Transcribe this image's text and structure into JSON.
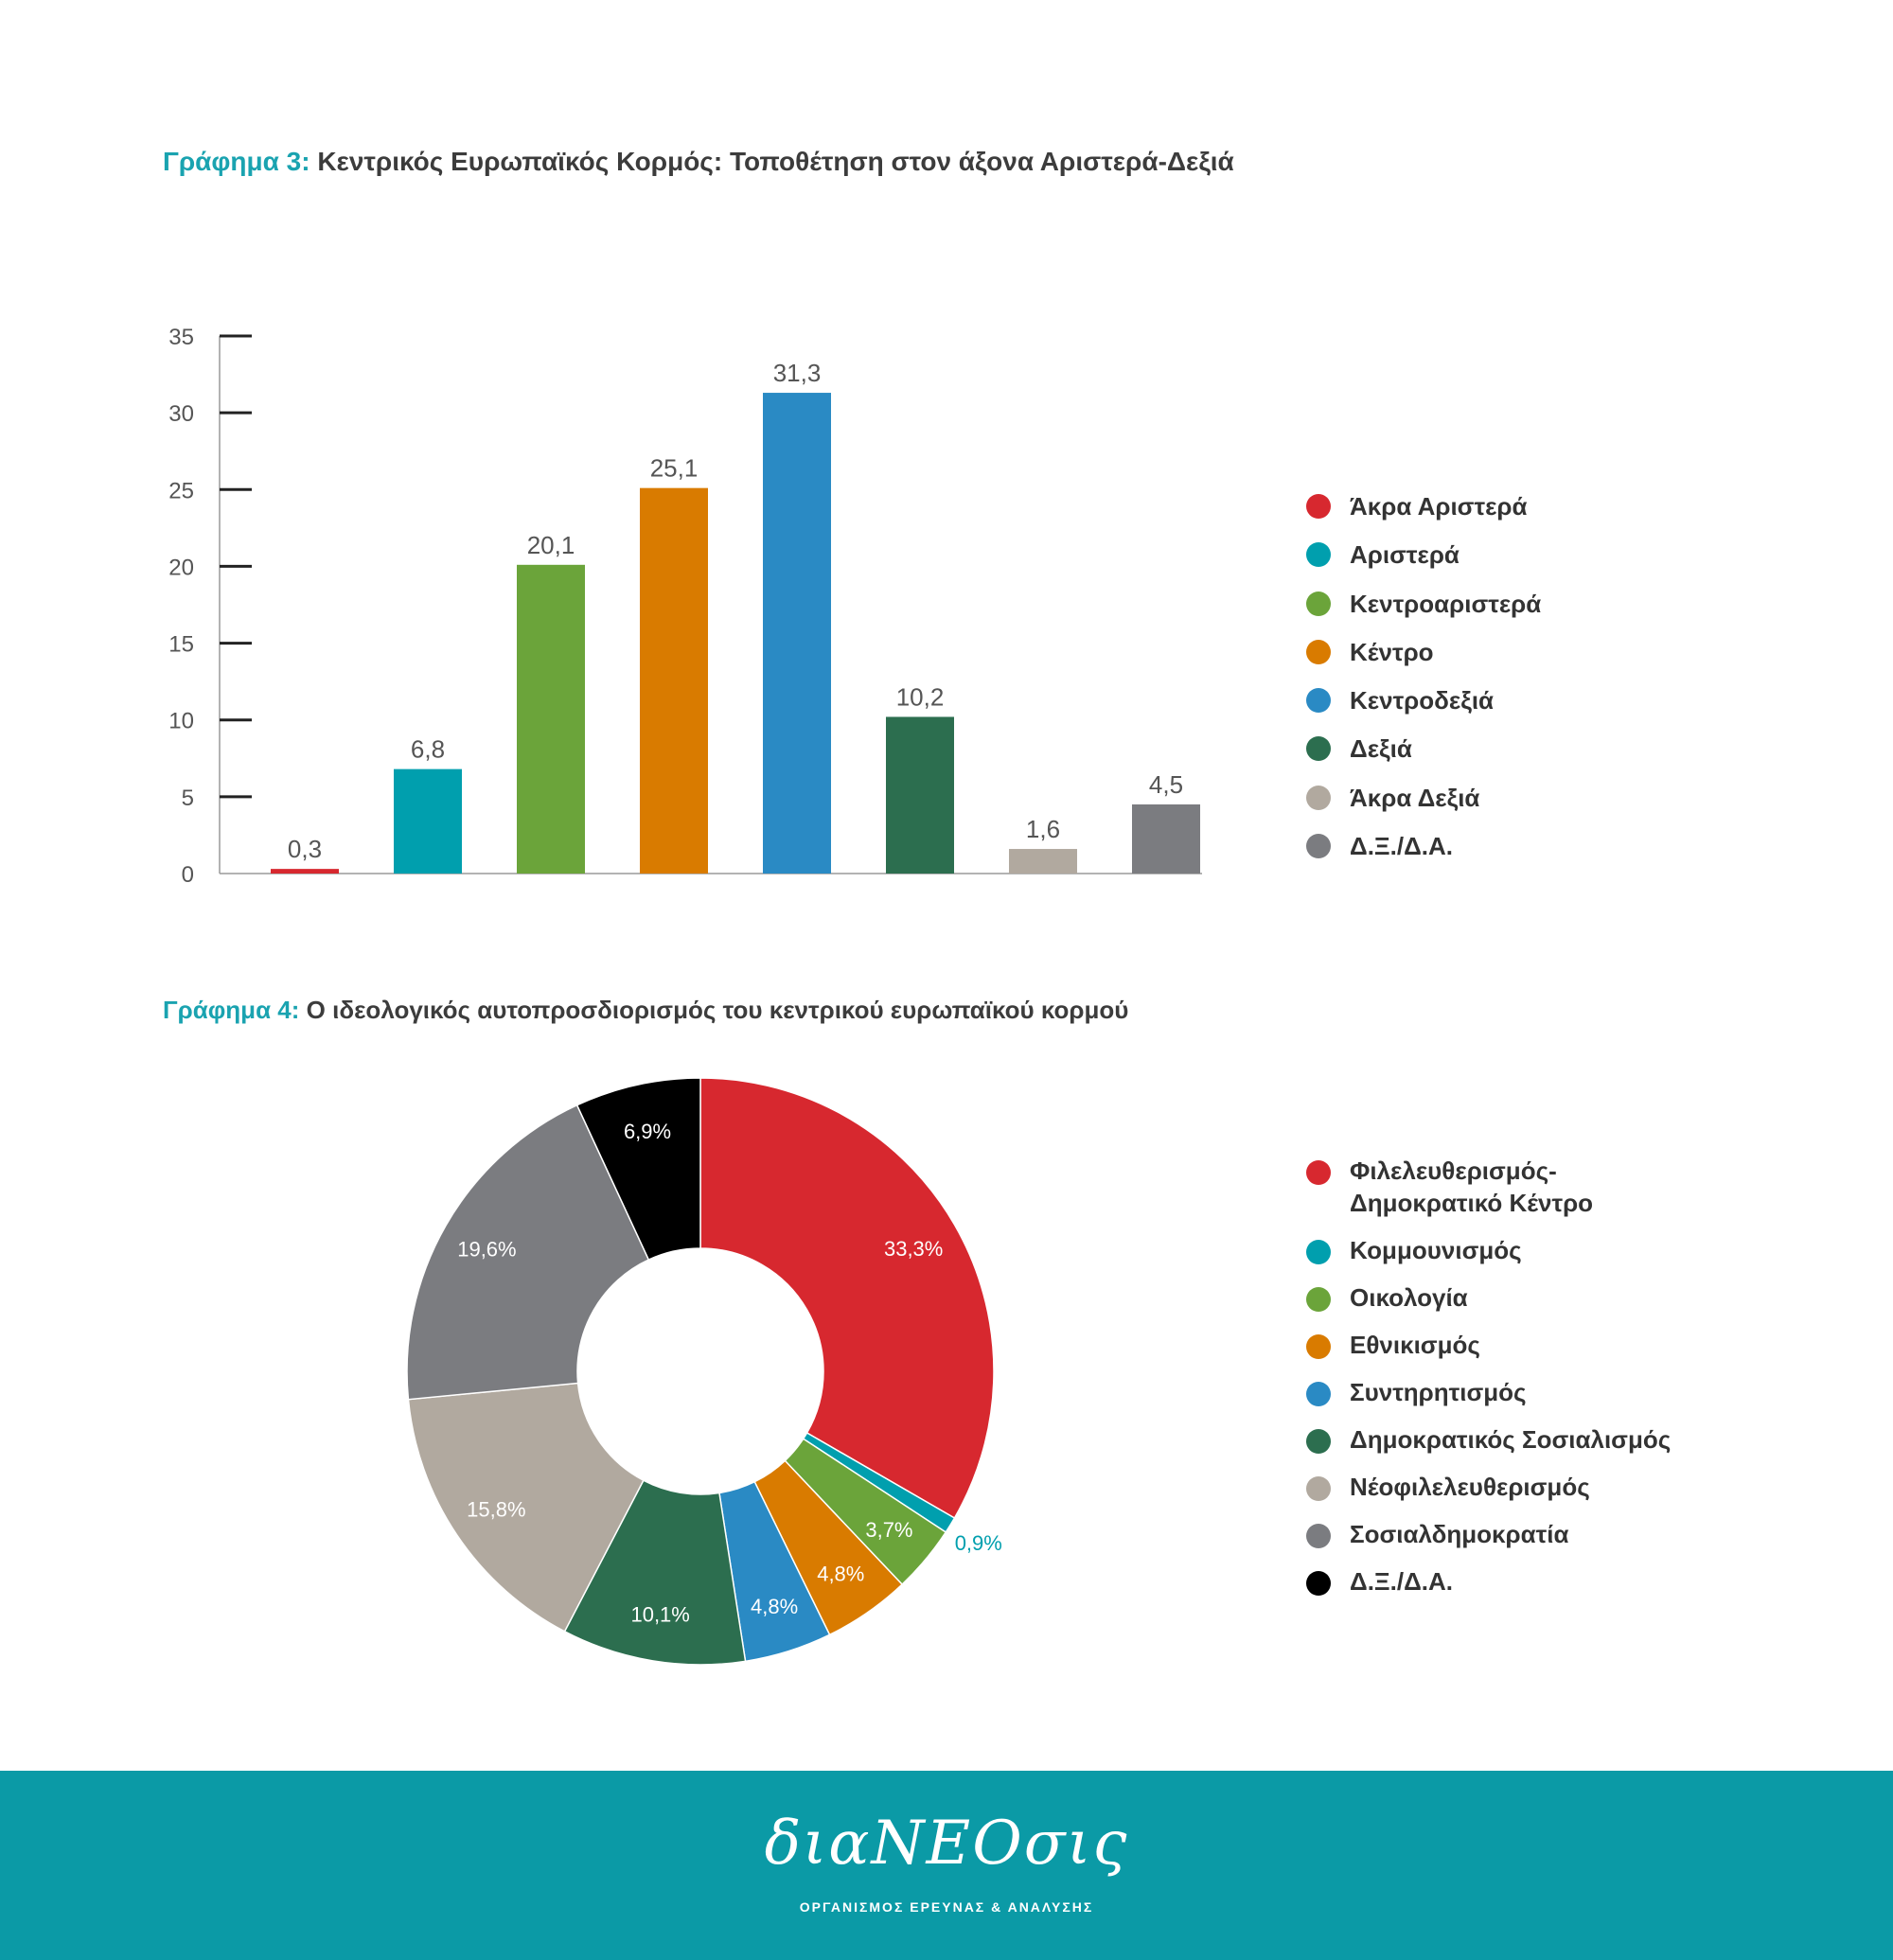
{
  "chart3": {
    "title_prefix": "Γράφημα 3:",
    "title": "Κεντρικός Ευρωπαϊκός Κορμός: Τοποθέτηση στον άξονα Αριστερά-Δεξιά"
  },
  "chart4": {
    "title_prefix": "Γράφημα 4:",
    "title": "Ο ιδεολογικός αυτοπροσδιορισμός του κεντρικού ευρωπαϊκού κορμού"
  },
  "chart_data": [
    {
      "type": "bar",
      "title": "Κεντρικός Ευρωπαϊκός Κορμός: Τοποθέτηση στον άξονα Αριστερά-Δεξιά",
      "categories": [
        "Άκρα Αριστερά",
        "Αριστερά",
        "Κεντροαριστερά",
        "Κέντρο",
        "Κεντροδεξιά",
        "Δεξιά",
        "Άκρα Δεξιά",
        "Δ.Ξ./Δ.Α."
      ],
      "values": [
        0.3,
        6.8,
        20.1,
        25.1,
        31.3,
        10.2,
        1.6,
        4.5
      ],
      "value_labels": [
        "0,3",
        "6,8",
        "20,1",
        "25,1",
        "31,3",
        "10,2",
        "1,6",
        "4,5"
      ],
      "colors": [
        "#d7282f",
        "#009fae",
        "#6ba43a",
        "#d97b00",
        "#2a8ac4",
        "#2c6e4f",
        "#b1a99f",
        "#7b7c80"
      ],
      "ylim": [
        0,
        35
      ],
      "yticks": [
        0,
        5,
        10,
        15,
        20,
        25,
        30,
        35
      ],
      "ytick_labels": [
        "0",
        "5",
        "10",
        "15",
        "20",
        "25",
        "30",
        "35"
      ],
      "xlabel": "",
      "ylabel": "",
      "legend_position": "right",
      "grid": false
    },
    {
      "type": "pie",
      "donut": true,
      "title": "Ο ιδεολογικός αυτοπροσδιορισμός του κεντρικού ευρωπαϊκού κορμού",
      "categories": [
        "Φιλελευθερισμός-Δημοκρατικό Κέντρο",
        "Κομμουνισμός",
        "Οικολογία",
        "Εθνικισμός",
        "Συντηρητισμός",
        "Δημοκρατικός Σοσιαλισμός",
        "Νεοφιλελευθερισμός",
        "Σοσιαλδημοκρατία",
        "Δ.Ξ./Δ.Α."
      ],
      "values": [
        33.3,
        0.9,
        3.7,
        4.8,
        4.8,
        10.1,
        15.8,
        19.6,
        6.9
      ],
      "value_labels": [
        "33,3%",
        "0,9%",
        "3,7%",
        "4,8%",
        "4,8%",
        "10,1%",
        "15,8%",
        "19,6%",
        "6,9%"
      ],
      "colors": [
        "#d7282f",
        "#009fae",
        "#6ba43a",
        "#d97b00",
        "#2a8ac4",
        "#2c6e4f",
        "#b1a99f",
        "#7b7c80",
        "#000000"
      ],
      "legend_position": "right"
    }
  ],
  "legend1": [
    {
      "label": "Άκρα Αριστερά",
      "color": "#d7282f"
    },
    {
      "label": "Αριστερά",
      "color": "#009fae"
    },
    {
      "label": "Κεντροαριστερά",
      "color": "#6ba43a"
    },
    {
      "label": "Κέντρο",
      "color": "#d97b00"
    },
    {
      "label": "Κεντροδεξιά",
      "color": "#2a8ac4"
    },
    {
      "label": "Δεξιά",
      "color": "#2c6e4f"
    },
    {
      "label": "Άκρα Δεξιά",
      "color": "#b1a99f"
    },
    {
      "label": "Δ.Ξ./Δ.Α.",
      "color": "#7b7c80"
    }
  ],
  "legend2": [
    {
      "label": "Φιλελευθερισμός- Δημοκρατικό Κέντρο",
      "color": "#d7282f"
    },
    {
      "label": "Κομμουνισμός",
      "color": "#009fae"
    },
    {
      "label": "Οικολογία",
      "color": "#6ba43a"
    },
    {
      "label": "Εθνικισμός",
      "color": "#d97b00"
    },
    {
      "label": "Συντηρητισμός",
      "color": "#2a8ac4"
    },
    {
      "label": "Δημοκρατικός Σοσιαλισμός",
      "color": "#2c6e4f"
    },
    {
      "label": "Νέοφιλελευθερισμός",
      "color": "#b1a99f"
    },
    {
      "label": "Σοσιαλδημοκρατία",
      "color": "#7b7c80"
    },
    {
      "label": "Δ.Ξ./Δ.Α.",
      "color": "#000000"
    }
  ],
  "footer": {
    "logo": "διαΝΕΟσις",
    "tagline": "ΟΡΓΑΝΙΣΜΟΣ ΕΡΕΥΝΑΣ & ΑΝΑΛΥΣΗΣ",
    "background": "#0b9aa6"
  }
}
